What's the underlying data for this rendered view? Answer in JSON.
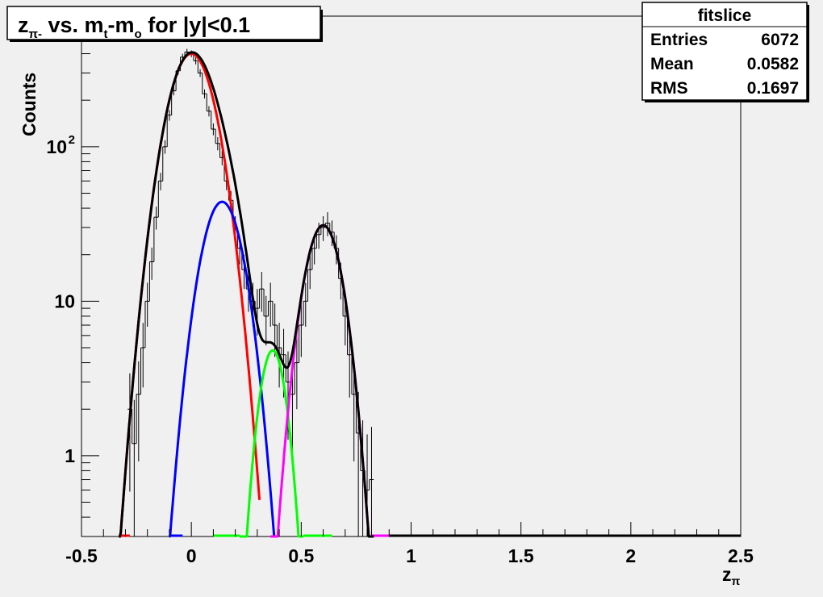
{
  "chart_data": {
    "type": "line",
    "title": {
      "main": "z",
      "sub": "π-",
      "mid": " vs. m",
      "sub_t": "t",
      "dash": "-m",
      "sub_o": "o",
      "tail": " for |y|<0.1"
    },
    "xlabel": "z",
    "xlabel_sub": "π",
    "ylabel": "Counts",
    "yscale": "log",
    "xlim": [
      -0.5,
      2.5
    ],
    "ylim": [
      0.3,
      700
    ],
    "x_ticks": [
      {
        "v": -0.5,
        "label": "-0.5"
      },
      {
        "v": 0,
        "label": "0"
      },
      {
        "v": 0.5,
        "label": "0.5"
      },
      {
        "v": 1,
        "label": "1"
      },
      {
        "v": 1.5,
        "label": "1.5"
      },
      {
        "v": 2,
        "label": "2"
      },
      {
        "v": 2.5,
        "label": "2.5"
      }
    ],
    "y_ticks": [
      {
        "v": 1,
        "label": "1"
      },
      {
        "v": 10,
        "label": "10"
      },
      {
        "v": 100,
        "label": "10",
        "exp": "2"
      }
    ],
    "stats_box": {
      "title": "fitslice",
      "rows": [
        {
          "label": "Entries",
          "value": "6072"
        },
        {
          "label": "Mean",
          "value": "0.0582"
        },
        {
          "label": "RMS",
          "value": "0.1697"
        }
      ]
    },
    "histogram": {
      "color": "#000000",
      "x": [
        -0.28,
        -0.26,
        -0.24,
        -0.22,
        -0.2,
        -0.18,
        -0.16,
        -0.14,
        -0.12,
        -0.1,
        -0.08,
        -0.06,
        -0.04,
        -0.02,
        0.0,
        0.02,
        0.04,
        0.06,
        0.08,
        0.1,
        0.12,
        0.14,
        0.16,
        0.18,
        0.2,
        0.22,
        0.24,
        0.26,
        0.28,
        0.3,
        0.32,
        0.34,
        0.36,
        0.38,
        0.4,
        0.42,
        0.44,
        0.46,
        0.48,
        0.5,
        0.52,
        0.54,
        0.56,
        0.58,
        0.6,
        0.62,
        0.64,
        0.66,
        0.68,
        0.7,
        0.72,
        0.74,
        0.76,
        0.78,
        0.8,
        0.82
      ],
      "counts": [
        2,
        1.2,
        2.5,
        5,
        10,
        18,
        35,
        60,
        100,
        160,
        230,
        310,
        380,
        410,
        400,
        360,
        300,
        220,
        170,
        130,
        105,
        85,
        60,
        45,
        30,
        22,
        16,
        12,
        10,
        9,
        12,
        8,
        10,
        7,
        5,
        4.5,
        3,
        2.5,
        4,
        7,
        10,
        16,
        22,
        27,
        30,
        32,
        28,
        22,
        14,
        8,
        4.5,
        2.5,
        1.4,
        0.8,
        0.6,
        0.7
      ]
    },
    "series": [
      {
        "name": "",
        "color": "#ff0000",
        "model": "gauss",
        "amp": 400,
        "mean": 0.0,
        "sigma": 0.085,
        "xmin": -0.33,
        "xmax": 0.31
      },
      {
        "name": "",
        "color": "#0000ff",
        "model": "gauss",
        "amp": 44,
        "mean": 0.14,
        "sigma": 0.075,
        "xmin": -0.1,
        "xmax": 0.38
      },
      {
        "name": "",
        "color": "#00ff00",
        "model": "gauss",
        "amp": 4.8,
        "mean": 0.37,
        "sigma": 0.05,
        "xmin": 0.22,
        "xmax": 0.51
      },
      {
        "name": "",
        "color": "#ff00ff",
        "model": "gauss",
        "amp": 31,
        "mean": 0.6,
        "sigma": 0.068,
        "xmin": 0.36,
        "xmax": 0.83
      },
      {
        "name": "",
        "color": "#000000",
        "model": "sum",
        "xmin": -0.33,
        "xmax": 0.83
      }
    ],
    "floor_segments": [
      {
        "color": "#ff0000",
        "xmin": -0.33,
        "xmax": -0.28
      },
      {
        "color": "#0000ff",
        "xmin": -0.1,
        "xmax": -0.04
      },
      {
        "color": "#00ff00",
        "xmin": 0.1,
        "xmax": 0.22
      },
      {
        "color": "#00ff00",
        "xmin": 0.51,
        "xmax": 0.64
      },
      {
        "color": "#ff00ff",
        "xmin": 0.82,
        "xmax": 0.9
      },
      {
        "color": "#000000",
        "xmin": 0.9,
        "xmax": 2.5
      }
    ]
  }
}
